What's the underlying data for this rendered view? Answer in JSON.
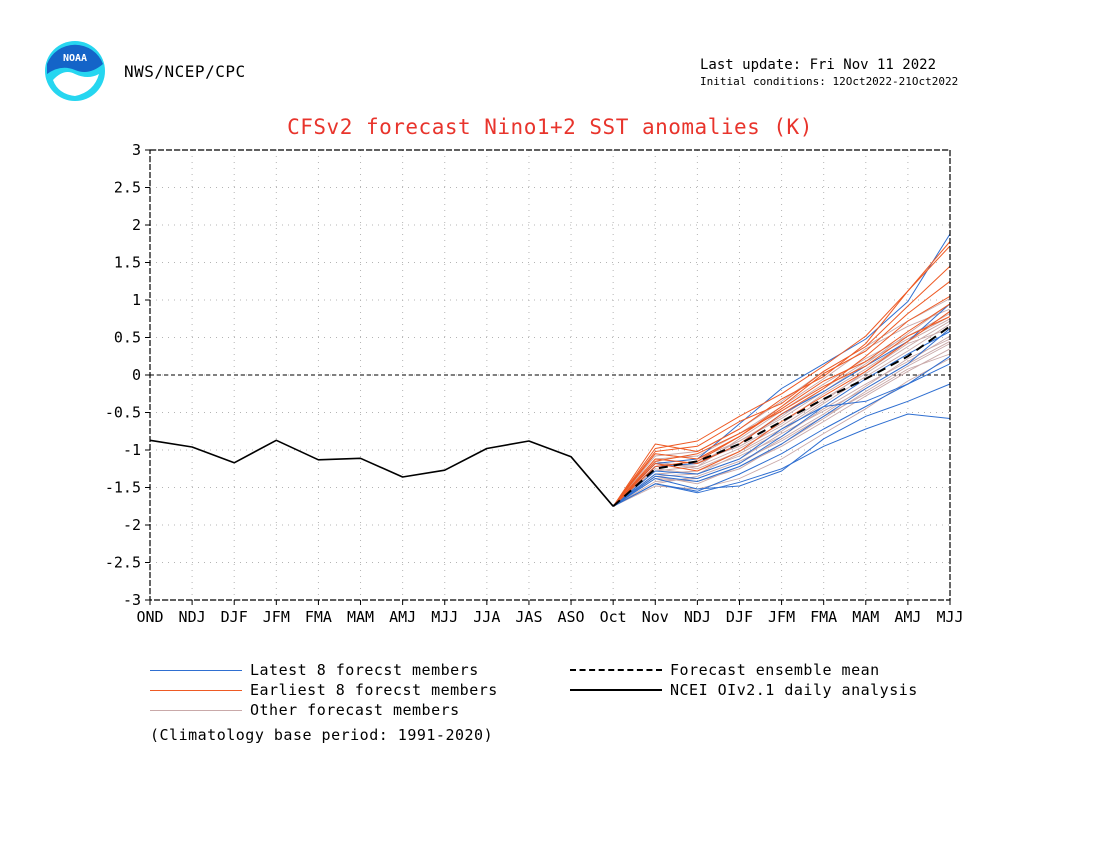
{
  "header": {
    "source": "NWS/NCEP/CPC",
    "last_update": "Last update: Fri Nov 11 2022",
    "initial_conditions": "Initial conditions: 12Oct2022-21Oct2022",
    "logo_text": "NOAA"
  },
  "colors": {
    "latest": "#2f6fd1",
    "earliest": "#ee5a24",
    "other": "#c9a9a9",
    "mean": "#000000",
    "observed": "#000000",
    "title": "#e8342c",
    "logo_blue": "#1464c8",
    "logo_cyan": "#26d6f0"
  },
  "legend": {
    "latest": "Latest 8 forecst members",
    "earliest": "Earliest 8 forecst members",
    "other": "Other forecast members",
    "mean": "Forecast ensemble mean",
    "observed": "NCEI OIv2.1 daily analysis"
  },
  "note": "(Climatology base period: 1991-2020)",
  "chart_data": {
    "type": "line",
    "title": "CFSv2 forecast Nino1+2 SST anomalies (K)",
    "categories": [
      "OND",
      "NDJ",
      "DJF",
      "JFM",
      "FMA",
      "MAM",
      "AMJ",
      "MJJ",
      "JJA",
      "JAS",
      "ASO",
      "Oct",
      "Nov",
      "NDJ",
      "DJF",
      "JFM",
      "FMA",
      "MAM",
      "AMJ",
      "MJJ"
    ],
    "ylim": [
      -3,
      3
    ],
    "yticks": [
      "3",
      "2.5",
      "2",
      "1.5",
      "1",
      "0.5",
      "0",
      "-0.5",
      "-1",
      "-1.5",
      "-2",
      "-2.5",
      "-3"
    ],
    "grid": true,
    "zero_line": true,
    "observed": {
      "name": "NCEI OIv2.1 daily analysis",
      "values": [
        -0.87,
        -0.96,
        -1.17,
        -0.87,
        -1.13,
        -1.11,
        -1.36,
        -1.27,
        -0.98,
        -0.88,
        -1.09,
        -1.75
      ]
    },
    "forecast_start_index": 11,
    "ensemble_mean": {
      "name": "Forecast ensemble mean",
      "values": [
        -1.75,
        -1.25,
        -1.15,
        -0.92,
        -0.62,
        -0.32,
        -0.05,
        0.25,
        0.65
      ]
    },
    "latest_members": [
      [
        -1.75,
        -1.45,
        -1.57,
        -1.43,
        -1.25,
        -0.95,
        -0.72,
        -0.52,
        -0.58
      ],
      [
        -1.75,
        -1.38,
        -1.52,
        -1.48,
        -1.28,
        -0.85,
        -0.55,
        -0.35,
        -0.12
      ],
      [
        -1.75,
        -1.45,
        -1.55,
        -1.32,
        -1.05,
        -0.72,
        -0.42,
        -0.12,
        0.25
      ],
      [
        -1.75,
        -1.28,
        -1.32,
        -1.12,
        -0.72,
        -0.42,
        -0.35,
        -0.12,
        0.15
      ],
      [
        -1.75,
        -1.35,
        -1.42,
        -1.22,
        -0.92,
        -0.55,
        -0.18,
        0.15,
        0.62
      ],
      [
        -1.75,
        -1.22,
        -1.18,
        -0.92,
        -0.52,
        -0.22,
        0.12,
        0.45,
        0.95
      ],
      [
        -1.75,
        -1.18,
        -1.12,
        -0.65,
        -0.18,
        0.15,
        0.48,
        0.98,
        1.88
      ],
      [
        -1.75,
        -1.32,
        -1.38,
        -1.18,
        -0.82,
        -0.42,
        -0.05,
        0.28,
        0.58
      ]
    ],
    "earliest_members": [
      [
        -1.75,
        -0.92,
        -1.02,
        -0.72,
        -0.32,
        -0.02,
        0.42,
        1.12,
        1.78
      ],
      [
        -1.75,
        -1.05,
        -1.12,
        -0.82,
        -0.42,
        0.02,
        0.32,
        0.82,
        1.25
      ],
      [
        -1.75,
        -1.12,
        -1.18,
        -0.92,
        -0.52,
        -0.18,
        0.25,
        0.72,
        1.05
      ],
      [
        -1.75,
        -0.98,
        -0.88,
        -0.55,
        -0.25,
        0.12,
        0.52,
        1.12,
        1.72
      ],
      [
        -1.75,
        -1.18,
        -1.28,
        -1.02,
        -0.62,
        -0.28,
        0.05,
        0.45,
        0.85
      ],
      [
        -1.75,
        -1.22,
        -1.15,
        -0.82,
        -0.45,
        -0.08,
        0.18,
        0.58,
        0.95
      ],
      [
        -1.75,
        -1.02,
        -0.95,
        -0.62,
        -0.38,
        0.05,
        0.38,
        0.92,
        1.45
      ],
      [
        -1.75,
        -1.15,
        -1.05,
        -0.78,
        -0.48,
        -0.15,
        0.12,
        0.52,
        0.78
      ]
    ],
    "other_members": [
      [
        -1.75,
        -1.42,
        -1.38,
        -1.18,
        -0.85,
        -0.52,
        -0.15,
        0.22,
        0.48
      ],
      [
        -1.75,
        -1.25,
        -1.32,
        -1.05,
        -0.75,
        -0.38,
        -0.02,
        0.32,
        0.68
      ],
      [
        -1.75,
        -1.18,
        -1.22,
        -0.85,
        -0.48,
        -0.12,
        0.22,
        0.52,
        0.82
      ],
      [
        -1.75,
        -1.35,
        -1.45,
        -1.22,
        -0.95,
        -0.62,
        -0.28,
        0.05,
        0.35
      ],
      [
        -1.75,
        -1.08,
        -1.02,
        -0.72,
        -0.35,
        0.05,
        0.38,
        0.72,
        1.02
      ],
      [
        -1.75,
        -1.48,
        -1.52,
        -1.38,
        -1.12,
        -0.78,
        -0.45,
        -0.08,
        0.22
      ],
      [
        -1.75,
        -1.22,
        -1.15,
        -0.95,
        -0.65,
        -0.25,
        0.08,
        0.45,
        0.75
      ],
      [
        -1.75,
        -1.32,
        -1.28,
        -1.08,
        -0.82,
        -0.45,
        -0.12,
        0.18,
        0.52
      ],
      [
        -1.75,
        -1.12,
        -1.08,
        -0.78,
        -0.42,
        -0.05,
        0.35,
        0.65,
        0.88
      ],
      [
        -1.75,
        -1.38,
        -1.42,
        -1.25,
        -0.92,
        -0.58,
        -0.22,
        0.12,
        0.42
      ],
      [
        -1.75,
        -1.28,
        -1.22,
        -0.98,
        -0.68,
        -0.32,
        0.02,
        0.38,
        0.72
      ],
      [
        -1.75,
        -1.05,
        -1.12,
        -0.88,
        -0.58,
        -0.22,
        0.15,
        0.55,
        0.95
      ],
      [
        -1.75,
        -1.45,
        -1.35,
        -1.15,
        -0.88,
        -0.55,
        -0.25,
        0.08,
        0.28
      ],
      [
        -1.75,
        -1.15,
        -1.25,
        -1.02,
        -0.72,
        -0.35,
        0.05,
        0.42,
        0.62
      ],
      [
        -1.75,
        -1.22,
        -1.18,
        -0.88,
        -0.55,
        -0.18,
        0.18,
        0.48,
        0.78
      ],
      [
        -1.75,
        -1.35,
        -1.32,
        -1.12,
        -0.78,
        -0.48,
        -0.18,
        0.15,
        0.45
      ]
    ]
  }
}
